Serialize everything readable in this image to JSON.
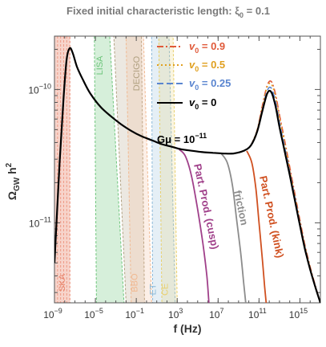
{
  "chart_data": {
    "type": "line",
    "title": "Fixed initial characteristic length: ξ",
    "title_sub": "0",
    "title_value": " = 0.1",
    "xlabel": "f (Hz)",
    "ylabel_main": "Ω",
    "ylabel_sub": "GW",
    "ylabel_tail": " h",
    "ylabel_sup": "2",
    "x_scale": "log",
    "y_scale": "log",
    "xlim_log10": [
      -9,
      17
    ],
    "ylim_log10": [
      -11.6,
      -9.6
    ],
    "x_ticks": [
      {
        "base": "10",
        "exp": "−9",
        "log": -9
      },
      {
        "base": "10",
        "exp": "−5",
        "log": -5
      },
      {
        "base": "10",
        "exp": "−1",
        "log": -1
      },
      {
        "base": "10",
        "exp": "3",
        "log": 3
      },
      {
        "base": "10",
        "exp": "7",
        "log": 7
      },
      {
        "base": "10",
        "exp": "11",
        "log": 11
      },
      {
        "base": "10",
        "exp": "15",
        "log": 15
      }
    ],
    "y_ticks": [
      {
        "base": "10",
        "exp": "−10",
        "log": -10
      },
      {
        "base": "10",
        "exp": "−11",
        "log": -11
      }
    ],
    "annotation": {
      "text": "Gμ = 10",
      "exp": "−11"
    },
    "legend": [
      {
        "sym": "v",
        "sub": "0",
        "text": " = 0.9",
        "color": "#e05a3a",
        "dash": "8,3,2,3"
      },
      {
        "sym": "v",
        "sub": "0",
        "text": " = 0.5",
        "color": "#e0a020",
        "dash": "2,3"
      },
      {
        "sym": "v",
        "sub": "0",
        "text": " = 0.25",
        "color": "#5a85d0",
        "dash": "8,4"
      },
      {
        "sym": "v",
        "sub": "0",
        "text": " = 0",
        "color": "#000000",
        "dash": ""
      }
    ],
    "bands": [
      {
        "name": "SKA",
        "color": "#e8836a"
      },
      {
        "name": "LISA",
        "color": "#6cc47a"
      },
      {
        "name": "DECIGO",
        "color": "#b0a080"
      },
      {
        "name": "BBO",
        "color": "#f0b890"
      },
      {
        "name": "ET",
        "color": "#8ab8d8"
      },
      {
        "name": "CE",
        "color": "#e8d070"
      }
    ],
    "cutoff_labels": [
      {
        "text": "Part. Prod. (cusp)",
        "color": "#a0408a"
      },
      {
        "text": "friction",
        "color": "#8c8c8c"
      },
      {
        "text": "Part. Prod. (kink)",
        "color": "#d05020"
      }
    ],
    "series": [
      {
        "line": "main",
        "x": [
          -9,
          -8.5,
          -8.1,
          -7.8,
          -7.5,
          -7.2,
          -6.8,
          -6.2,
          -5.5,
          -4.5,
          -3.5,
          -2.5,
          -1.5,
          -0.5,
          0.5,
          1.5,
          2.5,
          3.5,
          4.5,
          5.5,
          6.5,
          7.5,
          8.5,
          9.5,
          10.2,
          10.8,
          11.3,
          11.8,
          12.2,
          12.6,
          13.0,
          13.5,
          14.0,
          14.5,
          15.0,
          15.5,
          16.0,
          16.5,
          17.0
        ],
        "y": [
          -11.3,
          -10.55,
          -10.05,
          -9.77,
          -9.69,
          -9.73,
          -9.83,
          -9.93,
          -10.03,
          -10.13,
          -10.2,
          -10.26,
          -10.31,
          -10.35,
          -10.38,
          -10.41,
          -10.43,
          -10.45,
          -10.46,
          -10.47,
          -10.475,
          -10.48,
          -10.48,
          -10.46,
          -10.42,
          -10.32,
          -10.17,
          -10.03,
          -10.02,
          -10.12,
          -10.28,
          -10.46,
          -10.64,
          -10.83,
          -11.02,
          -11.2,
          -11.35,
          -11.48,
          -11.6
        ]
      },
      {
        "line": "v0=0.9",
        "x": [
          10.2,
          10.8,
          11.3,
          11.8,
          12.2,
          12.6,
          13.0,
          13.5,
          14.0,
          14.5,
          15.0,
          15.5,
          16.0,
          16.5,
          17.0
        ],
        "y": [
          -10.42,
          -10.31,
          -10.13,
          -9.97,
          -9.94,
          -10.03,
          -10.19,
          -10.38,
          -10.58,
          -10.78,
          -10.98,
          -11.17,
          -11.33,
          -11.47,
          -11.6
        ]
      },
      {
        "line": "v0=0.5",
        "x": [
          10.2,
          10.8,
          11.3,
          11.8,
          12.2,
          12.6,
          13.0,
          13.5,
          14.0,
          14.5,
          15.0,
          15.5,
          16.0,
          16.5,
          17.0
        ],
        "y": [
          -10.42,
          -10.31,
          -10.14,
          -9.98,
          -9.96,
          -10.05,
          -10.21,
          -10.4,
          -10.6,
          -10.8,
          -11.0,
          -11.18,
          -11.34,
          -11.48,
          -11.6
        ]
      },
      {
        "line": "v0=0.25",
        "x": [
          10.2,
          10.8,
          11.3,
          11.8,
          12.2,
          12.6,
          13.0,
          13.5,
          14.0,
          14.5,
          15.0,
          15.5,
          16.0,
          16.5,
          17.0
        ],
        "y": [
          -10.42,
          -10.32,
          -10.16,
          -10.01,
          -9.99,
          -10.09,
          -10.25,
          -10.43,
          -10.62,
          -10.81,
          -11.01,
          -11.19,
          -11.35,
          -11.48,
          -11.6
        ]
      },
      {
        "line": "cusp",
        "x": [
          3.2,
          3.8,
          4.4,
          5.0,
          5.5,
          5.9,
          6.1
        ],
        "y": [
          -10.45,
          -10.5,
          -10.65,
          -10.9,
          -11.15,
          -11.4,
          -11.6
        ]
      },
      {
        "line": "friction",
        "x": [
          7.3,
          7.9,
          8.4,
          8.8,
          9.2,
          9.5,
          9.7
        ],
        "y": [
          -10.48,
          -10.55,
          -10.72,
          -10.97,
          -11.22,
          -11.45,
          -11.6
        ]
      },
      {
        "line": "kink",
        "x": [
          9.8,
          10.3,
          10.7,
          11.0,
          11.3,
          11.55,
          11.7
        ],
        "y": [
          -10.46,
          -10.55,
          -10.75,
          -11.0,
          -11.25,
          -11.48,
          -11.6
        ]
      }
    ]
  }
}
